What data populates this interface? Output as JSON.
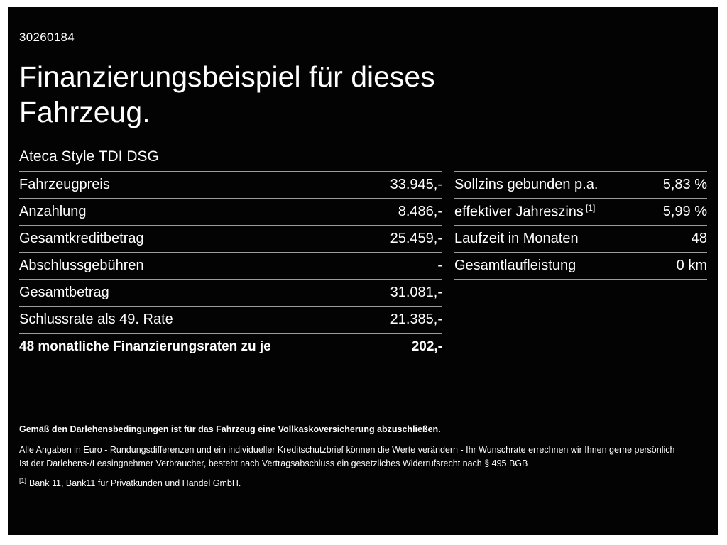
{
  "colors": {
    "background": "#030303",
    "frame": "#ffffff",
    "text": "#ffffff",
    "divider": "#9c9c9c"
  },
  "header": {
    "id_number": "30260184",
    "title_line1": "Finanzierungsbeispiel für dieses",
    "title_line2": "Fahrzeug.",
    "vehicle": "Ateca Style TDI DSG"
  },
  "left_table": {
    "rows": [
      {
        "label": "Fahrzeugpreis",
        "value": "33.945,-"
      },
      {
        "label": "Anzahlung",
        "value": "8.486,-"
      },
      {
        "label": "Gesamtkreditbetrag",
        "value": "25.459,-"
      },
      {
        "label": "Abschlussgebühren",
        "value": "-"
      },
      {
        "label": "Gesamtbetrag",
        "value": "31.081,-"
      },
      {
        "label": "Schlussrate als 49. Rate",
        "value": "21.385,-"
      },
      {
        "label": "48 monatliche Finanzierungsraten zu je",
        "value": "202,-"
      }
    ]
  },
  "right_table": {
    "rows": [
      {
        "label": "Sollzins gebunden p.a.",
        "value": "5,83 %"
      },
      {
        "label": "effektiver Jahreszins",
        "sup": "[1]",
        "value": "5,99 %"
      },
      {
        "label": "Laufzeit in Monaten",
        "value": "48"
      },
      {
        "label": "Gesamtlaufleistung",
        "value": "0 km"
      }
    ]
  },
  "footer": {
    "line1": "Gemäß den Darlehensbedingungen ist für das Fahrzeug eine Vollkaskoversicherung abzuschließen.",
    "line2": "Alle Angaben in Euro - Rundungsdifferenzen und ein individueller Kreditschutzbrief können die Werte verändern - Ihr Wunschrate errechnen wir Ihnen gerne persönlich",
    "line3": "Ist der Darlehens-/Leasingnehmer Verbraucher, besteht nach Vertragsabschluss ein gesetzliches Widerrufsrecht nach § 495 BGB",
    "footnote_marker": "[1]",
    "footnote_text": "Bank 11, Bank11 für Privatkunden und Handel GmbH."
  }
}
